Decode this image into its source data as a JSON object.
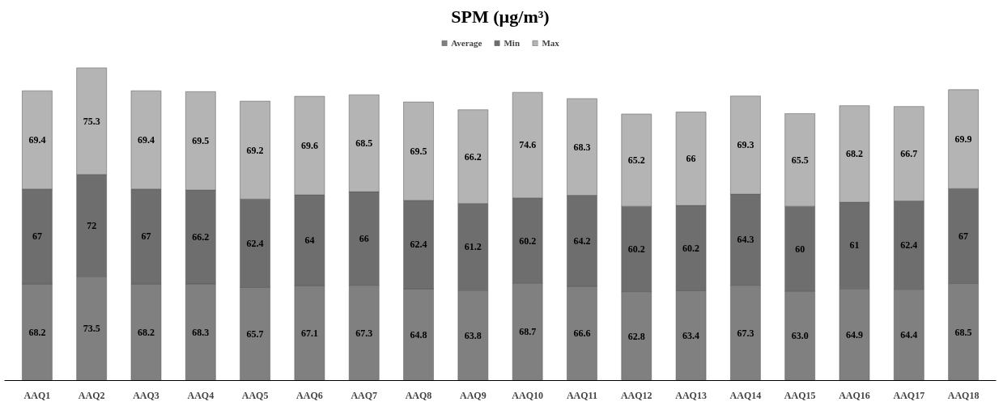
{
  "chart_data": {
    "type": "bar",
    "title": "SPM (µg/m³)",
    "stacked": true,
    "legend": "top",
    "grid": false,
    "categories": [
      "AAQ1",
      "AAQ2",
      "AAQ3",
      "AAQ4",
      "AAQ5",
      "AAQ6",
      "AAQ7",
      "AAQ8",
      "AAQ9",
      "AAQ10",
      "AAQ11",
      "AAQ12",
      "AAQ13",
      "AAQ14",
      "AAQ15",
      "AAQ16",
      "AAQ17",
      "AAQ18"
    ],
    "series": [
      {
        "name": "Average",
        "color": "#808080",
        "values": [
          68.2,
          73.5,
          68.2,
          68.3,
          65.7,
          67.1,
          67.3,
          64.8,
          63.8,
          68.7,
          66.6,
          62.8,
          63.4,
          67.3,
          63.0,
          64.9,
          64.4,
          68.5
        ],
        "value_labels": [
          "68.2",
          "73.5",
          "68.2",
          "68.3",
          "65.7",
          "67.1",
          "67.3",
          "64.8",
          "63.8",
          "68.7",
          "66.6",
          "62.8",
          "63.4",
          "67.3",
          "63.0",
          "64.9",
          "64.4",
          "68.5"
        ]
      },
      {
        "name": "Min",
        "color": "#6e6e6e",
        "values": [
          67,
          72,
          67,
          66.2,
          62.4,
          64,
          66,
          62.4,
          61.2,
          60.2,
          64.2,
          60.2,
          60.2,
          64.3,
          60,
          61,
          62.4,
          67
        ],
        "value_labels": [
          "67",
          "72",
          "67",
          "66.2",
          "62.4",
          "64",
          "66",
          "62.4",
          "61.2",
          "60.2",
          "64.2",
          "60.2",
          "60.2",
          "64.3",
          "60",
          "61",
          "62.4",
          "67"
        ]
      },
      {
        "name": "Max",
        "color": "#b4b4b4",
        "values": [
          69.4,
          75.3,
          69.4,
          69.5,
          69.2,
          69.6,
          68.5,
          69.5,
          66.2,
          74.6,
          68.3,
          65.2,
          66,
          69.3,
          65.5,
          68.2,
          66.7,
          69.9
        ],
        "value_labels": [
          "69.4",
          "75.3",
          "69.4",
          "69.5",
          "69.2",
          "69.6",
          "68.5",
          "69.5",
          "66.2",
          "74.6",
          "68.3",
          "65.2",
          "66",
          "69.3",
          "65.5",
          "68.2",
          "66.7",
          "69.9"
        ]
      }
    ]
  }
}
